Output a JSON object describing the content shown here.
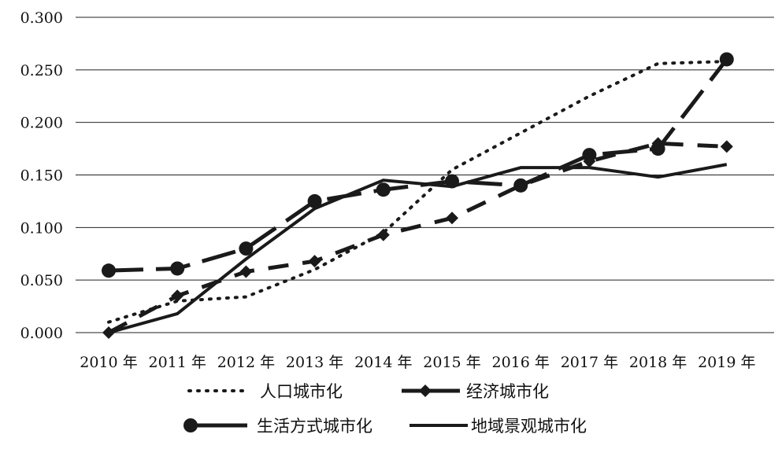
{
  "chart_data": {
    "type": "line",
    "title": "",
    "xlabel": "",
    "ylabel": "",
    "categories": [
      "2010 年",
      "2011 年",
      "2012 年",
      "2013 年",
      "2014 年",
      "2015 年",
      "2016 年",
      "2017 年",
      "2018 年",
      "2019 年"
    ],
    "ylim": [
      0,
      0.3
    ],
    "yticks": [
      "0.000",
      "0.050",
      "0.100",
      "0.150",
      "0.200",
      "0.250",
      "0.300"
    ],
    "grid": "horizontal",
    "legend_position": "bottom",
    "series": [
      {
        "name": "人口城市化",
        "values": [
          0.01,
          0.03,
          0.034,
          0.06,
          0.095,
          0.155,
          0.19,
          0.225,
          0.256,
          0.258
        ],
        "style": "dotted",
        "marker": "none",
        "color": "#1a1a1a"
      },
      {
        "name": "经济城市化",
        "values": [
          0.0,
          0.035,
          0.058,
          0.068,
          0.093,
          0.109,
          0.14,
          0.163,
          0.18,
          0.177
        ],
        "style": "dashed",
        "marker": "diamond",
        "color": "#1a1a1a"
      },
      {
        "name": "生活方式城市化",
        "values": [
          0.059,
          0.061,
          0.08,
          0.125,
          0.136,
          0.144,
          0.14,
          0.169,
          0.175,
          0.26
        ],
        "style": "longdash",
        "marker": "circle",
        "color": "#1a1a1a"
      },
      {
        "name": "地域景观城市化",
        "values": [
          0.0,
          0.018,
          0.07,
          0.118,
          0.145,
          0.139,
          0.157,
          0.157,
          0.148,
          0.16
        ],
        "style": "solid",
        "marker": "none",
        "color": "#1a1a1a"
      }
    ]
  }
}
